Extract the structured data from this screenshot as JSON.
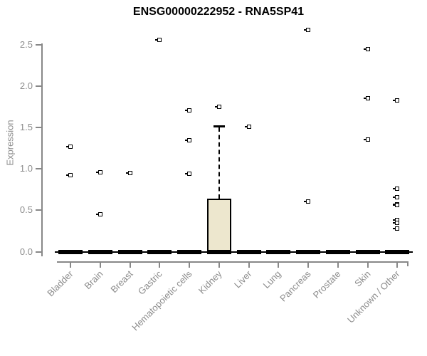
{
  "title": "ENSG00000222952 - RNA5SP41",
  "colors": {
    "title": "#000000",
    "axis": "#888888",
    "tick_label": "#8c8c8c",
    "box_fill": "#EDE7CE",
    "box_stroke": "#000000",
    "point": "#000000"
  },
  "chart_data": {
    "type": "boxplot",
    "title": "ENSG00000222952 - RNA5SP41",
    "xlabel": "",
    "ylabel": "Expression",
    "ylim": [
      0,
      2.7
    ],
    "y_ticks": [
      0.0,
      0.5,
      1.0,
      1.5,
      2.0,
      2.5
    ],
    "grid": false,
    "legend": false,
    "categories": [
      "Bladder",
      "Brain",
      "Breast",
      "Gastric",
      "Hematopoietic cells",
      "Kidney",
      "Liver",
      "Lung",
      "Pancreas",
      "Prostate",
      "Skin",
      "Unknown / Other"
    ],
    "series": [
      {
        "category": "Bladder",
        "box": {
          "low": 0,
          "q1": 0,
          "median": 0,
          "q3": 0,
          "high": 0
        },
        "outliers": [
          1.27,
          0.93
        ]
      },
      {
        "category": "Brain",
        "box": {
          "low": 0,
          "q1": 0,
          "median": 0,
          "q3": 0,
          "high": 0
        },
        "outliers": [
          0.96,
          0.45
        ]
      },
      {
        "category": "Breast",
        "box": {
          "low": 0,
          "q1": 0,
          "median": 0,
          "q3": 0,
          "high": 0
        },
        "outliers": [
          0.95
        ]
      },
      {
        "category": "Gastric",
        "box": {
          "low": 0,
          "q1": 0,
          "median": 0,
          "q3": 0,
          "high": 0
        },
        "outliers": [
          2.56
        ]
      },
      {
        "category": "Hematopoietic cells",
        "box": {
          "low": 0,
          "q1": 0,
          "median": 0,
          "q3": 0,
          "high": 0
        },
        "outliers": [
          1.71,
          1.35,
          0.94
        ]
      },
      {
        "category": "Kidney",
        "box": {
          "low": 0,
          "q1": 0,
          "median": 0,
          "q3": 0.64,
          "high": 1.52
        },
        "outliers": [
          1.75
        ]
      },
      {
        "category": "Liver",
        "box": {
          "low": 0,
          "q1": 0,
          "median": 0,
          "q3": 0,
          "high": 0
        },
        "outliers": [
          1.51
        ]
      },
      {
        "category": "Lung",
        "box": {
          "low": 0,
          "q1": 0,
          "median": 0,
          "q3": 0,
          "high": 0
        },
        "outliers": []
      },
      {
        "category": "Pancreas",
        "box": {
          "low": 0,
          "q1": 0,
          "median": 0,
          "q3": 0,
          "high": 0
        },
        "outliers": [
          2.68,
          0.61
        ]
      },
      {
        "category": "Prostate",
        "box": {
          "low": 0,
          "q1": 0,
          "median": 0,
          "q3": 0,
          "high": 0
        },
        "outliers": []
      },
      {
        "category": "Skin",
        "box": {
          "low": 0,
          "q1": 0,
          "median": 0,
          "q3": 0,
          "high": 0
        },
        "outliers": [
          2.45,
          1.86,
          1.36
        ]
      },
      {
        "category": "Unknown / Other",
        "box": {
          "low": 0,
          "q1": 0,
          "median": 0,
          "q3": 0,
          "high": 0
        },
        "outliers": [
          1.83,
          0.76,
          0.66,
          0.57,
          0.56,
          0.38,
          0.35,
          0.28
        ]
      }
    ]
  }
}
